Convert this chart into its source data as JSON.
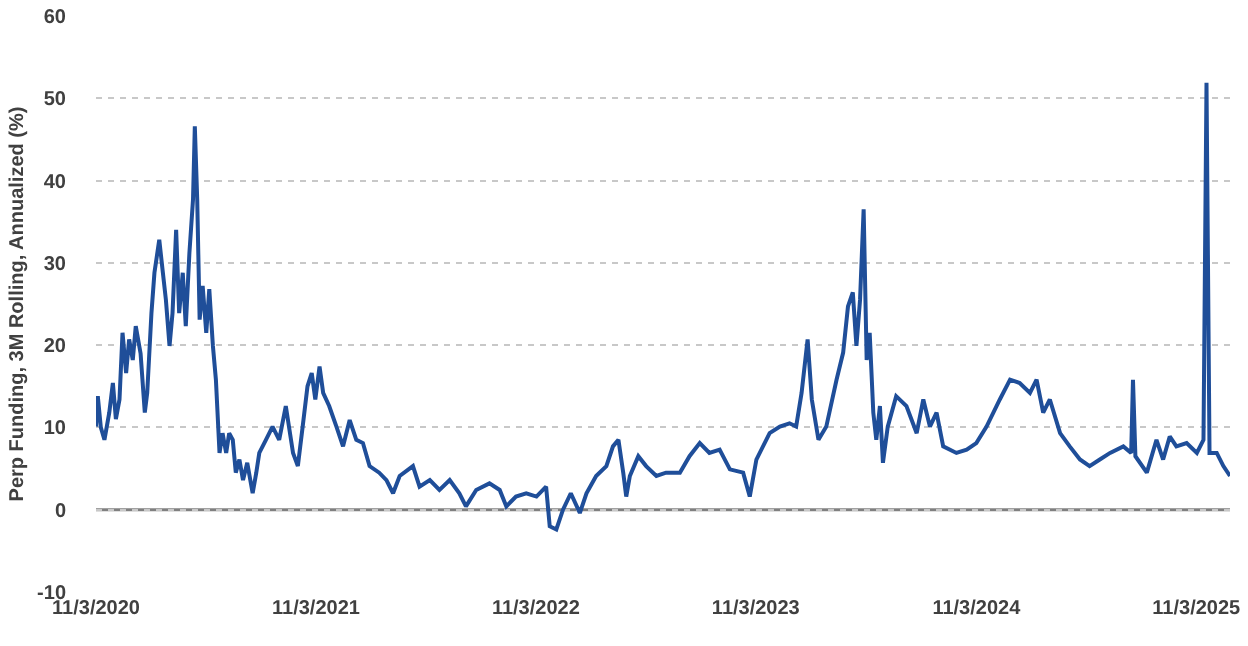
{
  "chart_data": {
    "type": "line",
    "ylabel": "Perp Funding, 3M Rolling, Annualized (%)",
    "xlim": [
      "2020-11-03",
      "2025-12-29"
    ],
    "xticks": [
      {
        "value": "2020-11-03",
        "label": "11/3/2020"
      },
      {
        "value": "2021-11-03",
        "label": "11/3/2021"
      },
      {
        "value": "2022-11-03",
        "label": "11/3/2022"
      },
      {
        "value": "2023-11-03",
        "label": "11/3/2023"
      },
      {
        "value": "2024-11-03",
        "label": "11/3/2024"
      },
      {
        "value": "2025-11-03",
        "label": "11/3/2025"
      }
    ],
    "ylim": [
      -10,
      60
    ],
    "yticks": [
      -10,
      0,
      10,
      20,
      30,
      40,
      50,
      60
    ],
    "grid": "y",
    "marker": "none",
    "line_style": "solid",
    "ref_lines": [
      {
        "axis": "y",
        "value": 0,
        "color": "#808080",
        "line_style": "solid"
      }
    ],
    "series": [
      {
        "color": "#1f4e99",
        "x": [
          "2020-11-03",
          "2020-11-06",
          "2020-11-11",
          "2020-11-17",
          "2020-11-25",
          "2020-12-01",
          "2020-12-06",
          "2020-12-12",
          "2020-12-17",
          "2020-12-23",
          "2020-12-28",
          "2021-01-03",
          "2021-01-08",
          "2021-01-16",
          "2021-01-23",
          "2021-01-27",
          "2021-02-03",
          "2021-02-08",
          "2021-02-16",
          "2021-02-22",
          "2021-02-27",
          "2021-03-05",
          "2021-03-10",
          "2021-03-16",
          "2021-03-21",
          "2021-03-27",
          "2021-04-01",
          "2021-04-07",
          "2021-04-13",
          "2021-04-16",
          "2021-04-20",
          "2021-04-24",
          "2021-04-29",
          "2021-05-05",
          "2021-05-10",
          "2021-05-16",
          "2021-05-21",
          "2021-05-27",
          "2021-06-01",
          "2021-06-07",
          "2021-06-12",
          "2021-06-18",
          "2021-06-23",
          "2021-06-29",
          "2021-07-05",
          "2021-07-12",
          "2021-07-21",
          "2021-07-27",
          "2021-08-01",
          "2021-08-12",
          "2021-08-23",
          "2021-09-03",
          "2021-09-14",
          "2021-09-26",
          "2021-10-04",
          "2021-10-12",
          "2021-10-20",
          "2021-10-27",
          "2021-11-02",
          "2021-11-09",
          "2021-11-15",
          "2021-11-25",
          "2021-12-07",
          "2021-12-18",
          "2021-12-29",
          "2022-01-09",
          "2022-01-20",
          "2022-01-31",
          "2022-02-16",
          "2022-02-28",
          "2022-03-11",
          "2022-03-22",
          "2022-04-13",
          "2022-04-24",
          "2022-05-11",
          "2022-05-27",
          "2022-06-13",
          "2022-06-29",
          "2022-07-10",
          "2022-07-27",
          "2022-08-18",
          "2022-09-04",
          "2022-09-15",
          "2022-10-01",
          "2022-10-18",
          "2022-11-04",
          "2022-11-20",
          "2022-11-26",
          "2022-12-07",
          "2022-12-18",
          "2022-12-31",
          "2023-01-15",
          "2023-01-26",
          "2023-02-11",
          "2023-02-28",
          "2023-03-11",
          "2023-03-20",
          "2023-03-28",
          "2023-04-02",
          "2023-04-08",
          "2023-04-22",
          "2023-05-05",
          "2023-05-22",
          "2023-06-07",
          "2023-06-30",
          "2023-07-16",
          "2023-08-02",
          "2023-08-18",
          "2023-09-04",
          "2023-09-21",
          "2023-10-13",
          "2023-10-24",
          "2023-11-04",
          "2023-11-26",
          "2023-12-13",
          "2023-12-29",
          "2024-01-09",
          "2024-01-18",
          "2024-01-28",
          "2024-02-04",
          "2024-02-15",
          "2024-02-28",
          "2024-03-16",
          "2024-03-27",
          "2024-04-04",
          "2024-04-12",
          "2024-04-18",
          "2024-04-24",
          "2024-04-30",
          "2024-05-05",
          "2024-05-10",
          "2024-05-16",
          "2024-05-21",
          "2024-05-27",
          "2024-06-01",
          "2024-06-09",
          "2024-06-23",
          "2024-07-10",
          "2024-07-27",
          "2024-08-07",
          "2024-08-18",
          "2024-08-29",
          "2024-09-09",
          "2024-10-01",
          "2024-10-18",
          "2024-11-03",
          "2024-11-20",
          "2024-12-12",
          "2024-12-29",
          "2025-01-14",
          "2025-01-31",
          "2025-02-11",
          "2025-02-22",
          "2025-03-05",
          "2025-03-22",
          "2025-04-07",
          "2025-04-24",
          "2025-05-10",
          "2025-05-27",
          "2025-06-13",
          "2025-07-05",
          "2025-07-18",
          "2025-07-21",
          "2025-07-25",
          "2025-08-13",
          "2025-08-29",
          "2025-09-09",
          "2025-09-20",
          "2025-10-01",
          "2025-10-18",
          "2025-11-04",
          "2025-11-15",
          "2025-11-20",
          "2025-11-25",
          "2025-12-07",
          "2025-12-18",
          "2025-12-29"
        ],
        "values": [
          10.1,
          13.8,
          10,
          8.5,
          11.8,
          15.4,
          11,
          13.4,
          21.5,
          16.6,
          20.7,
          18.2,
          22.3,
          19,
          11.8,
          14.2,
          23.9,
          28.8,
          32.8,
          28.8,
          25.5,
          19.9,
          23.9,
          34,
          23.9,
          28.8,
          22.3,
          31.2,
          37.7,
          46.6,
          37.7,
          23.1,
          27.2,
          21.5,
          26.8,
          19.9,
          15.8,
          6.9,
          9.3,
          6.9,
          9.3,
          8.5,
          4.5,
          6.1,
          3.6,
          5.7,
          2,
          4.5,
          6.9,
          8.5,
          10.1,
          8.5,
          12.6,
          6.9,
          5.3,
          10.1,
          15,
          16.6,
          13.4,
          17.4,
          14.2,
          12.6,
          10.1,
          7.7,
          10.9,
          8.5,
          8.1,
          5.3,
          4.5,
          3.6,
          2,
          4.1,
          5.3,
          2.8,
          3.6,
          2.4,
          3.6,
          2,
          0.4,
          2.4,
          3.2,
          2.4,
          0.4,
          1.6,
          2,
          1.6,
          2.8,
          -2,
          -2.4,
          0,
          2,
          -0.4,
          2,
          4.1,
          5.3,
          7.7,
          8.5,
          4.5,
          1.6,
          4.1,
          6.5,
          5.3,
          4.1,
          4.5,
          4.5,
          6.5,
          8.1,
          6.9,
          7.3,
          4.9,
          4.5,
          1.6,
          6.1,
          9.3,
          10.1,
          10.5,
          10.1,
          14.2,
          20.7,
          13.4,
          8.5,
          10.1,
          15.8,
          19.1,
          24.7,
          26.4,
          19.9,
          25.5,
          36.5,
          18.2,
          21.5,
          11.8,
          8.5,
          12.6,
          5.7,
          10.1,
          13.8,
          12.6,
          9.3,
          13.4,
          10.1,
          11.8,
          7.7,
          6.9,
          7.3,
          8.1,
          10.1,
          13.4,
          15.8,
          15.4,
          14.2,
          15.8,
          11.8,
          13.4,
          9.3,
          7.7,
          6.1,
          5.3,
          6.1,
          6.9,
          7.7,
          6.9,
          15.8,
          6.5,
          4.5,
          8.5,
          6.1,
          8.9,
          7.7,
          8.1,
          6.9,
          8.5,
          51.9,
          6.9,
          6.9,
          5.3,
          4.1
        ]
      }
    ]
  }
}
